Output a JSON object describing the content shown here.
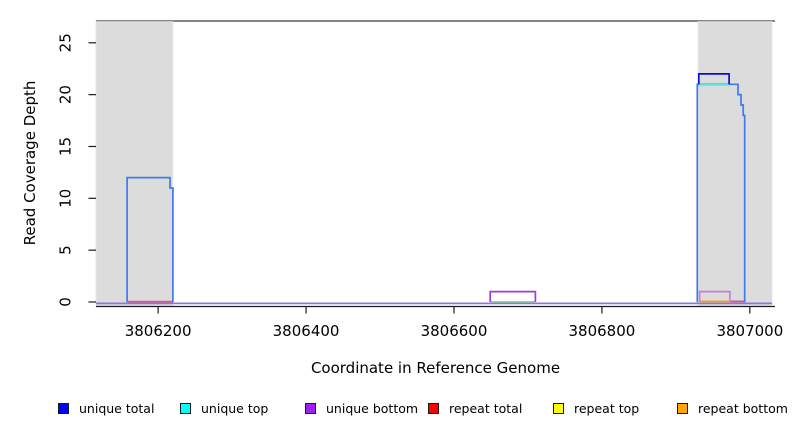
{
  "axes": {
    "xlabel": "Coordinate in Reference Genome",
    "ylabel": "Read Coverage Depth"
  },
  "legend": {
    "items": [
      {
        "label": "unique total",
        "color": "#0000ff"
      },
      {
        "label": "unique top",
        "color": "#00ffff"
      },
      {
        "label": "unique bottom",
        "color": "#a020f0"
      },
      {
        "label": "repeat total",
        "color": "#ff0000"
      },
      {
        "label": "repeat top",
        "color": "#ffff00"
      },
      {
        "label": "repeat bottom",
        "color": "#ffa500"
      }
    ]
  },
  "chart_data": {
    "type": "line",
    "subtype": "step-coverage",
    "title": "",
    "xlabel": "Coordinate in Reference Genome",
    "ylabel": "Read Coverage Depth",
    "xlim": [
      3806116,
      3807034
    ],
    "ylim": [
      0,
      27
    ],
    "xticks": [
      3806200,
      3806400,
      3806600,
      3806800,
      3807000
    ],
    "yticks": [
      0,
      5,
      10,
      15,
      20,
      25
    ],
    "grid": false,
    "legend_position": "bottom",
    "shaded_regions": [
      {
        "name": "left-repeat-region",
        "from": 3806116,
        "to": 3806220,
        "color": "#dcdcdc"
      },
      {
        "name": "right-repeat-region",
        "from": 3806930,
        "to": 3807030,
        "color": "#dcdcdc"
      }
    ],
    "features": [
      {
        "name": "unique-bottom-baseline",
        "type": "hline",
        "depth": 0,
        "from": 3806116,
        "to": 3807030,
        "offset": 1.4,
        "color": "#8f74e6"
      },
      {
        "name": "repeat-total-left-line",
        "type": "hline",
        "depth": 0,
        "from": 3806158,
        "to": 3806220,
        "offset": -0.4,
        "color": "#d96075"
      },
      {
        "name": "green-overlap-line",
        "type": "hline",
        "depth": 0,
        "from": 3806650,
        "to": 3806709,
        "offset": -0.2,
        "color": "#90d890"
      },
      {
        "name": "repeat-bottom-right-line",
        "type": "hline",
        "depth": 0,
        "from": 3806932,
        "to": 3806973,
        "offset": -0.6,
        "color": "#ffa000"
      },
      {
        "name": "repeat-total-right-line",
        "type": "hline",
        "depth": 0,
        "from": 3806973,
        "to": 3806994,
        "offset": -0.6,
        "color": "#dd4f7d"
      },
      {
        "name": "unique-total-left-peak",
        "type": "steps",
        "color": "#3e7af0",
        "points": [
          [
            3806158,
            0
          ],
          [
            3806158,
            12
          ],
          [
            3806216,
            12
          ],
          [
            3806216,
            11
          ],
          [
            3806220,
            11
          ],
          [
            3806220,
            0
          ]
        ]
      },
      {
        "name": "unique-bottom-mid-box",
        "type": "steps",
        "color": "#9b3bee",
        "points": [
          [
            3806649,
            0
          ],
          [
            3806649,
            1
          ],
          [
            3806710,
            1
          ],
          [
            3806710,
            0
          ]
        ]
      },
      {
        "name": "unique-bottom-right-box",
        "type": "steps",
        "color": "#c77fd9",
        "points": [
          [
            3806932,
            0
          ],
          [
            3806932,
            1
          ],
          [
            3806973,
            1
          ],
          [
            3806973,
            0
          ]
        ]
      },
      {
        "name": "unique-total-right-peak",
        "type": "steps",
        "color": "#3e7af0",
        "points": [
          [
            3806929,
            0
          ],
          [
            3806929,
            21
          ],
          [
            3806984,
            21
          ],
          [
            3806984,
            20
          ],
          [
            3806988,
            20
          ],
          [
            3806988,
            19
          ],
          [
            3806991,
            19
          ],
          [
            3806991,
            18
          ],
          [
            3806993,
            18
          ],
          [
            3806993,
            0
          ]
        ]
      },
      {
        "name": "unique-top-right-line",
        "type": "hline",
        "depth": 21,
        "from": 3806931,
        "to": 3806972,
        "offset": 0.5,
        "color": "#55e6e6"
      },
      {
        "name": "unique-total-right-cap",
        "type": "steps",
        "color": "#0d0dd8",
        "points": [
          [
            3806931,
            21
          ],
          [
            3806931,
            22
          ],
          [
            3806972,
            22
          ],
          [
            3806972,
            21
          ]
        ]
      }
    ],
    "colors": {
      "shaded_region": "#dcdcdc",
      "plot_border": "#3c3c3c",
      "axis": "#1a1a1a"
    }
  }
}
